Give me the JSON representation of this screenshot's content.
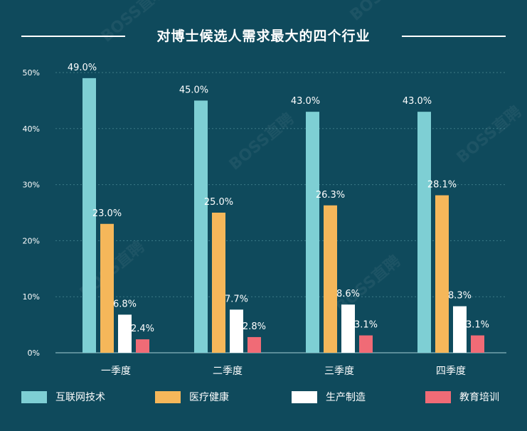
{
  "title": "对博士候选人需求最大的四个行业",
  "watermark": "BOSS直聘",
  "colors": {
    "background": "#0f4a5c",
    "gridline": "#3d7a86",
    "axis": "#5a8c98",
    "text": "#ffffff"
  },
  "chart_data": {
    "type": "bar",
    "title": "对博士候选人需求最大的四个行业",
    "xlabel": "",
    "ylabel": "",
    "ylim": [
      0,
      50
    ],
    "yticks": [
      "0%",
      "10%",
      "20%",
      "30%",
      "40%",
      "50%"
    ],
    "grid": true,
    "legend_position": "bottom",
    "categories": [
      "一季度",
      "二季度",
      "三季度",
      "四季度"
    ],
    "series": [
      {
        "name": "互联网技术",
        "color": "#7ecfd4",
        "values": [
          49.0,
          45.0,
          43.0,
          43.0
        ],
        "labels": [
          "49.0%",
          "45.0%",
          "43.0%",
          "43.0%"
        ]
      },
      {
        "name": "医疗健康",
        "color": "#f5b75a",
        "values": [
          23.0,
          25.0,
          26.3,
          28.1
        ],
        "labels": [
          "23.0%",
          "25.0%",
          "26.3%",
          "28.1%"
        ]
      },
      {
        "name": "生产制造",
        "color": "#ffffff",
        "values": [
          6.8,
          7.7,
          8.6,
          8.3
        ],
        "labels": [
          "6.8%",
          "7.7%",
          "8.6%",
          "8.3%"
        ]
      },
      {
        "name": "教育培训",
        "color": "#f06b76",
        "values": [
          2.4,
          2.8,
          3.1,
          3.1
        ],
        "labels": [
          "2.4%",
          "2.8%",
          "3.1%",
          "3.1%"
        ]
      }
    ]
  }
}
